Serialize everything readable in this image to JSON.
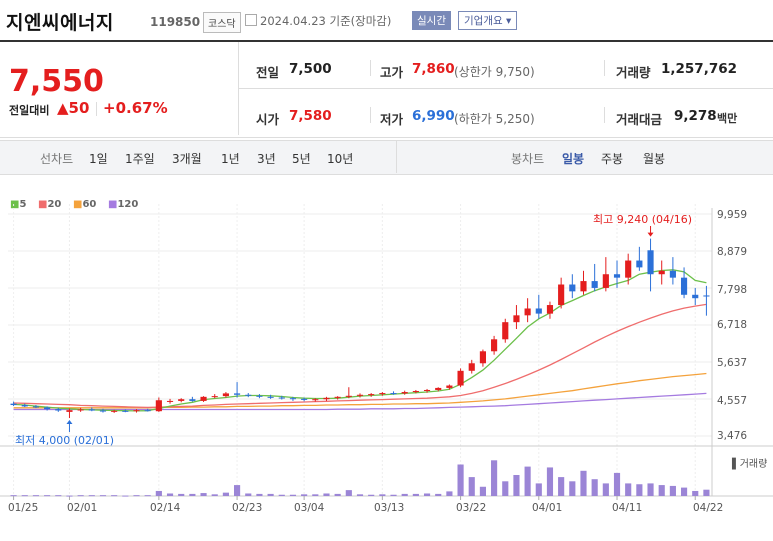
{
  "header": {
    "stock_name": "지엔씨에너지",
    "stock_code": "119850",
    "market_badge": "코스닥",
    "date_text": "2024.04.23 기준(장마감)",
    "realtime_button": "실시간",
    "overview_button": "기업개요 ▾"
  },
  "price": {
    "current": "7,550",
    "prev_label": "전일대비",
    "change": "▲50",
    "change_pct": "+0.67%"
  },
  "quote": {
    "prev_close_label": "전일",
    "prev_close": "7,500",
    "open_label": "시가",
    "open": "7,580",
    "high_label": "고가",
    "high": "7,860",
    "upper_limit": "(상한가 9,750)",
    "low_label": "저가",
    "low": "6,990",
    "lower_limit": "(하한가 5,250)",
    "volume_label": "거래량",
    "volume": "1,257,762",
    "amount_label": "거래대금",
    "amount": "9,278",
    "amount_unit": "백만"
  },
  "menu": {
    "line_label": "선차트",
    "line_periods": [
      "1일",
      "1주일",
      "3개월",
      "1년",
      "3년",
      "5년",
      "10년"
    ],
    "candle_label": "봉차트",
    "candle_periods": [
      "일봉",
      "주봉",
      "월봉"
    ],
    "selected_candle": "일봉"
  },
  "colors": {
    "up": "#e41e1e",
    "down": "#2b70d8",
    "ma5": "#6cc04a",
    "ma20": "#ef6d6d",
    "ma60": "#f4a23c",
    "ma120": "#a57be0",
    "volume": "#9b85d6"
  },
  "chart_data": {
    "type": "candlestick",
    "moving_averages": [
      {
        "name": "5",
        "color": "#6cc04a"
      },
      {
        "name": "20",
        "color": "#ef6d6d"
      },
      {
        "name": "60",
        "color": "#f4a23c"
      },
      {
        "name": "120",
        "color": "#a57be0"
      }
    ],
    "y_ticks": [
      "9,959",
      "8,879",
      "7,798",
      "6,718",
      "5,637",
      "4,557",
      "3,476"
    ],
    "y_tick_values": [
      9959,
      8879,
      7798,
      6718,
      5637,
      4557,
      3476
    ],
    "ylim": [
      3476,
      9959
    ],
    "x_ticks": [
      "01/25",
      "02/01",
      "02/14",
      "02/23",
      "03/04",
      "03/13",
      "03/22",
      "04/01",
      "04/11",
      "04/22"
    ],
    "x_tick_index": [
      0,
      5,
      13,
      20,
      26,
      33,
      40,
      47,
      54,
      61
    ],
    "high_annotation": "최고 9,240 (04/16)",
    "high_annotation_index": 57,
    "high_annotation_value": 9240,
    "low_annotation": "최저 4,000 (02/01)",
    "low_annotation_index": 5,
    "low_annotation_value": 4000,
    "volume_label": "▌거래량",
    "candles": [
      {
        "o": 4420,
        "h": 4480,
        "l": 4350,
        "c": 4380
      },
      {
        "o": 4380,
        "h": 4420,
        "l": 4320,
        "c": 4340
      },
      {
        "o": 4340,
        "h": 4380,
        "l": 4290,
        "c": 4310
      },
      {
        "o": 4310,
        "h": 4340,
        "l": 4220,
        "c": 4260
      },
      {
        "o": 4260,
        "h": 4300,
        "l": 4180,
        "c": 4220
      },
      {
        "o": 4180,
        "h": 4280,
        "l": 4000,
        "c": 4230
      },
      {
        "o": 4230,
        "h": 4300,
        "l": 4180,
        "c": 4250
      },
      {
        "o": 4250,
        "h": 4310,
        "l": 4200,
        "c": 4220
      },
      {
        "o": 4220,
        "h": 4270,
        "l": 4160,
        "c": 4190
      },
      {
        "o": 4190,
        "h": 4240,
        "l": 4150,
        "c": 4210
      },
      {
        "o": 4210,
        "h": 4250,
        "l": 4170,
        "c": 4200
      },
      {
        "o": 4200,
        "h": 4260,
        "l": 4160,
        "c": 4230
      },
      {
        "o": 4230,
        "h": 4270,
        "l": 4190,
        "c": 4220
      },
      {
        "o": 4200,
        "h": 4600,
        "l": 4180,
        "c": 4520
      },
      {
        "o": 4480,
        "h": 4560,
        "l": 4420,
        "c": 4500
      },
      {
        "o": 4500,
        "h": 4580,
        "l": 4460,
        "c": 4550
      },
      {
        "o": 4550,
        "h": 4620,
        "l": 4480,
        "c": 4500
      },
      {
        "o": 4500,
        "h": 4640,
        "l": 4470,
        "c": 4620
      },
      {
        "o": 4620,
        "h": 4700,
        "l": 4580,
        "c": 4640
      },
      {
        "o": 4640,
        "h": 4760,
        "l": 4600,
        "c": 4720
      },
      {
        "o": 4720,
        "h": 5050,
        "l": 4600,
        "c": 4680
      },
      {
        "o": 4680,
        "h": 4730,
        "l": 4610,
        "c": 4650
      },
      {
        "o": 4650,
        "h": 4700,
        "l": 4580,
        "c": 4620
      },
      {
        "o": 4620,
        "h": 4680,
        "l": 4560,
        "c": 4600
      },
      {
        "o": 4600,
        "h": 4650,
        "l": 4540,
        "c": 4580
      },
      {
        "o": 4580,
        "h": 4620,
        "l": 4500,
        "c": 4560
      },
      {
        "o": 4560,
        "h": 4600,
        "l": 4490,
        "c": 4530
      },
      {
        "o": 4530,
        "h": 4580,
        "l": 4480,
        "c": 4550
      },
      {
        "o": 4550,
        "h": 4620,
        "l": 4500,
        "c": 4590
      },
      {
        "o": 4590,
        "h": 4640,
        "l": 4540,
        "c": 4620
      },
      {
        "o": 4620,
        "h": 4900,
        "l": 4580,
        "c": 4650
      },
      {
        "o": 4650,
        "h": 4720,
        "l": 4600,
        "c": 4680
      },
      {
        "o": 4680,
        "h": 4730,
        "l": 4620,
        "c": 4700
      },
      {
        "o": 4700,
        "h": 4760,
        "l": 4650,
        "c": 4730
      },
      {
        "o": 4730,
        "h": 4780,
        "l": 4680,
        "c": 4720
      },
      {
        "o": 4720,
        "h": 4800,
        "l": 4680,
        "c": 4760
      },
      {
        "o": 4760,
        "h": 4820,
        "l": 4720,
        "c": 4790
      },
      {
        "o": 4790,
        "h": 4850,
        "l": 4740,
        "c": 4820
      },
      {
        "o": 4820,
        "h": 4900,
        "l": 4780,
        "c": 4880
      },
      {
        "o": 4880,
        "h": 4980,
        "l": 4830,
        "c": 4950
      },
      {
        "o": 4950,
        "h": 5450,
        "l": 4900,
        "c": 5380
      },
      {
        "o": 5380,
        "h": 5700,
        "l": 5300,
        "c": 5600
      },
      {
        "o": 5600,
        "h": 6000,
        "l": 5500,
        "c": 5950
      },
      {
        "o": 5950,
        "h": 6400,
        "l": 5850,
        "c": 6300
      },
      {
        "o": 6300,
        "h": 6900,
        "l": 6200,
        "c": 6800
      },
      {
        "o": 6800,
        "h": 7300,
        "l": 6600,
        "c": 7000
      },
      {
        "o": 7000,
        "h": 7500,
        "l": 6800,
        "c": 7200
      },
      {
        "o": 7200,
        "h": 7600,
        "l": 6900,
        "c": 7050
      },
      {
        "o": 7050,
        "h": 7400,
        "l": 6900,
        "c": 7300
      },
      {
        "o": 7300,
        "h": 8100,
        "l": 7200,
        "c": 7900
      },
      {
        "o": 7900,
        "h": 8200,
        "l": 7500,
        "c": 7700
      },
      {
        "o": 7700,
        "h": 8300,
        "l": 7600,
        "c": 8000
      },
      {
        "o": 8000,
        "h": 8500,
        "l": 7700,
        "c": 7800
      },
      {
        "o": 7800,
        "h": 8700,
        "l": 7700,
        "c": 8200
      },
      {
        "o": 8200,
        "h": 8600,
        "l": 7800,
        "c": 8100
      },
      {
        "o": 8100,
        "h": 8800,
        "l": 7900,
        "c": 8600
      },
      {
        "o": 8600,
        "h": 9000,
        "l": 8300,
        "c": 8400
      },
      {
        "o": 8900,
        "h": 9240,
        "l": 7700,
        "c": 8200
      },
      {
        "o": 8200,
        "h": 8600,
        "l": 7900,
        "c": 8300
      },
      {
        "o": 8300,
        "h": 8700,
        "l": 7900,
        "c": 8100
      },
      {
        "o": 8100,
        "h": 8400,
        "l": 7500,
        "c": 7600
      },
      {
        "o": 7600,
        "h": 7800,
        "l": 7300,
        "c": 7500
      },
      {
        "o": 7580,
        "h": 7860,
        "l": 6990,
        "c": 7550
      }
    ],
    "ma5": [
      4400,
      4380,
      4350,
      4320,
      4290,
      4270,
      4250,
      4240,
      4230,
      4220,
      4215,
      4210,
      4215,
      4280,
      4350,
      4410,
      4460,
      4540,
      4570,
      4600,
      4640,
      4660,
      4660,
      4650,
      4630,
      4600,
      4580,
      4570,
      4570,
      4580,
      4610,
      4640,
      4660,
      4680,
      4700,
      4720,
      4740,
      4760,
      4790,
      4840,
      4990,
      5180,
      5400,
      5690,
      6010,
      6330,
      6660,
      6900,
      7070,
      7290,
      7430,
      7580,
      7720,
      7830,
      7930,
      8020,
      8200,
      8260,
      8310,
      8330,
      8270,
      8020,
      7950
    ],
    "ma20": [
      4440,
      4430,
      4420,
      4410,
      4400,
      4390,
      4370,
      4360,
      4350,
      4340,
      4330,
      4320,
      4310,
      4320,
      4330,
      4340,
      4350,
      4370,
      4380,
      4400,
      4410,
      4420,
      4430,
      4440,
      4450,
      4460,
      4470,
      4480,
      4490,
      4500,
      4510,
      4520,
      4530,
      4540,
      4550,
      4560,
      4570,
      4580,
      4600,
      4620,
      4660,
      4720,
      4800,
      4900,
      5010,
      5130,
      5260,
      5400,
      5550,
      5710,
      5880,
      6050,
      6220,
      6380,
      6530,
      6670,
      6800,
      6920,
      7030,
      7130,
      7210,
      7270,
      7320
    ],
    "ma60": [
      4300,
      4300,
      4300,
      4300,
      4300,
      4300,
      4300,
      4300,
      4300,
      4300,
      4300,
      4300,
      4300,
      4310,
      4310,
      4310,
      4320,
      4320,
      4330,
      4330,
      4340,
      4340,
      4350,
      4350,
      4360,
      4360,
      4370,
      4370,
      4380,
      4380,
      4390,
      4390,
      4400,
      4400,
      4410,
      4410,
      4420,
      4420,
      4430,
      4440,
      4460,
      4480,
      4500,
      4530,
      4560,
      4600,
      4640,
      4680,
      4720,
      4760,
      4800,
      4850,
      4900,
      4950,
      5000,
      5040,
      5090,
      5130,
      5170,
      5210,
      5240,
      5270,
      5300
    ],
    "ma120": [
      4250,
      4250,
      4250,
      4250,
      4250,
      4250,
      4250,
      4250,
      4250,
      4250,
      4250,
      4250,
      4250,
      4250,
      4250,
      4250,
      4250,
      4250,
      4250,
      4250,
      4250,
      4250,
      4250,
      4250,
      4250,
      4250,
      4250,
      4250,
      4250,
      4260,
      4260,
      4260,
      4270,
      4270,
      4270,
      4280,
      4280,
      4290,
      4300,
      4310,
      4320,
      4330,
      4340,
      4350,
      4360,
      4380,
      4400,
      4420,
      4440,
      4460,
      4480,
      4500,
      4520,
      4540,
      4560,
      4580,
      4600,
      4620,
      4640,
      4660,
      4680,
      4700,
      4720
    ],
    "volumes": [
      0.02,
      0.02,
      0.02,
      0.02,
      0.02,
      0.01,
      0.02,
      0.02,
      0.02,
      0.02,
      0.01,
      0.02,
      0.02,
      0.12,
      0.06,
      0.05,
      0.05,
      0.07,
      0.04,
      0.08,
      0.26,
      0.06,
      0.05,
      0.05,
      0.03,
      0.03,
      0.04,
      0.04,
      0.06,
      0.05,
      0.14,
      0.04,
      0.03,
      0.04,
      0.03,
      0.05,
      0.05,
      0.06,
      0.05,
      0.11,
      0.75,
      0.45,
      0.22,
      0.85,
      0.35,
      0.5,
      0.7,
      0.3,
      0.68,
      0.45,
      0.35,
      0.6,
      0.4,
      0.3,
      0.55,
      0.3,
      0.28,
      0.3,
      0.26,
      0.24,
      0.2,
      0.12,
      0.15
    ]
  }
}
